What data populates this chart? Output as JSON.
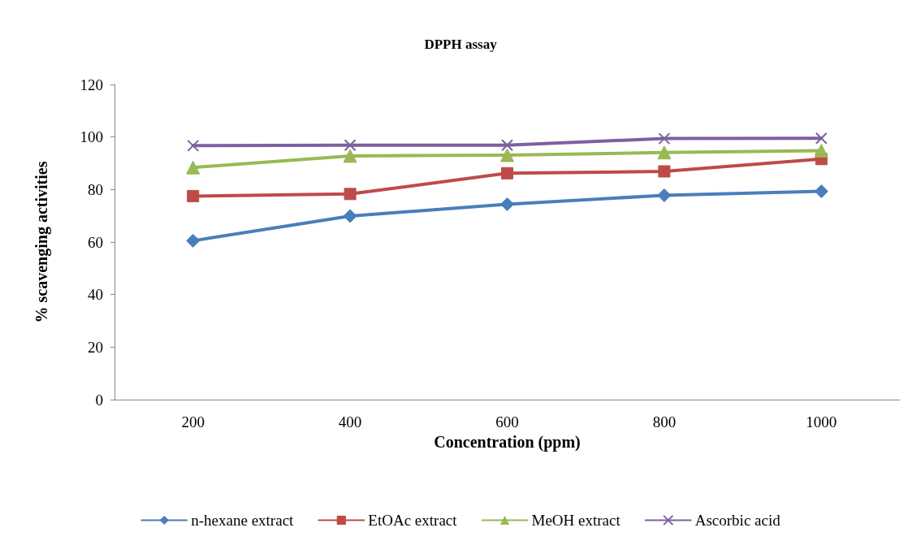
{
  "chart_data": {
    "type": "line",
    "title": "DPPH assay",
    "xlabel": "Concentration (ppm)",
    "ylabel": "% scavenging activities",
    "categories": [
      "200",
      "400",
      "600",
      "800",
      "1000"
    ],
    "series": [
      {
        "name": "n-hexane extract",
        "color": "#4a7ebb",
        "marker": "diamond",
        "values": [
          60.5,
          69.9,
          74.4,
          77.8,
          79.3
        ]
      },
      {
        "name": "EtOAc extract",
        "color": "#be4b48",
        "marker": "square",
        "values": [
          77.5,
          78.3,
          86.2,
          86.9,
          91.6
        ]
      },
      {
        "name": "MeOH extract",
        "color": "#98b954",
        "marker": "triangle",
        "values": [
          88.4,
          92.8,
          93.1,
          94.1,
          94.8
        ]
      },
      {
        "name": "Ascorbic acid",
        "color": "#7d60a0",
        "marker": "cross",
        "values": [
          96.7,
          96.9,
          96.9,
          99.4,
          99.5
        ]
      }
    ],
    "ylim": [
      0,
      120
    ],
    "yticks": [
      0,
      20,
      40,
      60,
      80,
      100,
      120
    ],
    "grid": false,
    "legend": "bottom"
  }
}
